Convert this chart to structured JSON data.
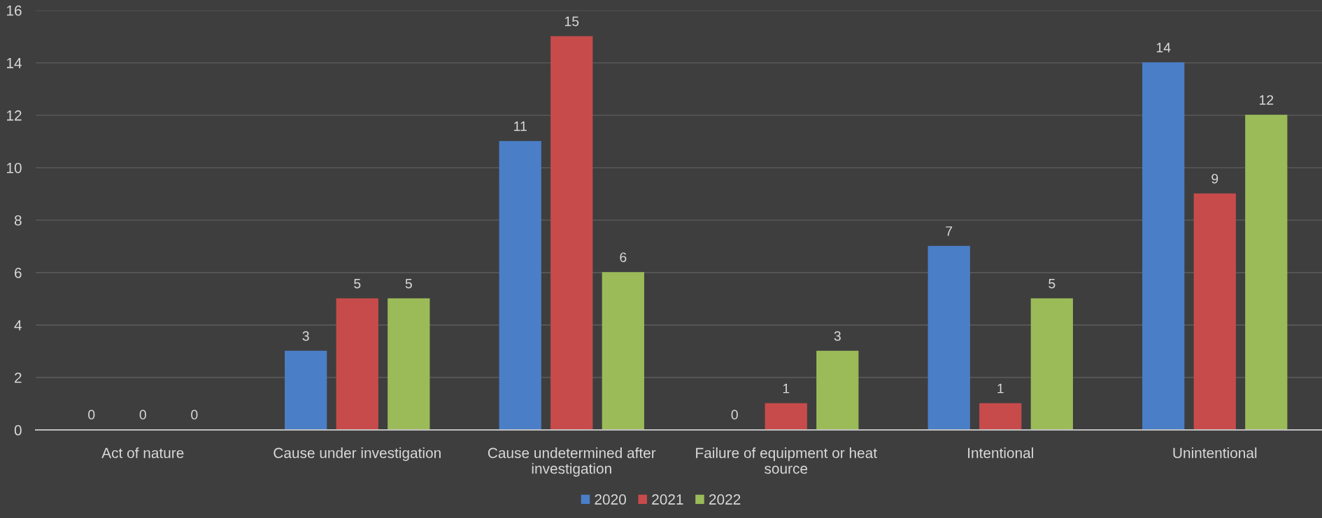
{
  "chart_data": {
    "type": "bar",
    "categories": [
      "Act of nature",
      "Cause under investigation",
      "Cause undetermined after investigation",
      "Failure of equipment or heat source",
      "Intentional",
      "Unintentional"
    ],
    "series": [
      {
        "name": "2020",
        "color": "#4a7fc8",
        "values": [
          0,
          3,
          11,
          0,
          7,
          14
        ]
      },
      {
        "name": "2021",
        "color": "#c84b4b",
        "values": [
          0,
          5,
          15,
          1,
          1,
          9
        ]
      },
      {
        "name": "2022",
        "color": "#9bbb59",
        "values": [
          0,
          5,
          6,
          3,
          5,
          12
        ]
      }
    ],
    "ylim": [
      0,
      16
    ],
    "yticks": [
      0,
      2,
      4,
      6,
      8,
      10,
      12,
      14,
      16
    ],
    "grid": "y",
    "legend": "bottom",
    "data_labels": true
  }
}
